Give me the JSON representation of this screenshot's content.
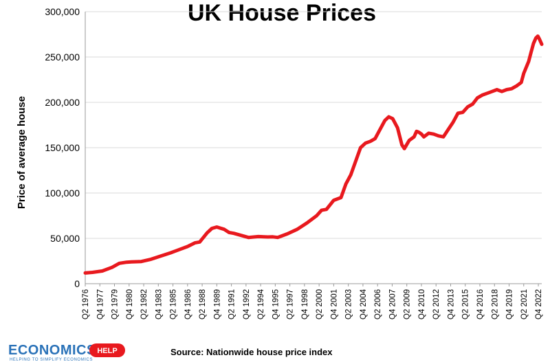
{
  "chart_data": {
    "type": "line",
    "title": "UK House Prices",
    "ylabel": "Price of average house",
    "xlabel": "",
    "source": "Source: Nationwide house price index",
    "ylim": [
      0,
      300000
    ],
    "yticks": [
      "0",
      "50,000",
      "100,000",
      "150,000",
      "200,000",
      "250,000",
      "300,000"
    ],
    "ytick_values": [
      0,
      50000,
      100000,
      150000,
      200000,
      250000,
      300000
    ],
    "xlim_years": [
      1976.25,
      2023.1
    ],
    "xticks": [
      "Q2 1976",
      "Q4 1977",
      "Q2 1979",
      "Q4 1980",
      "Q2 1982",
      "Q4 1983",
      "Q2 1985",
      "Q4 1986",
      "Q2 1988",
      "Q4 1989",
      "Q2 1991",
      "Q4 1992",
      "Q2 1994",
      "Q4 1995",
      "Q2 1997",
      "Q4 1998",
      "Q2 2000",
      "Q4 2001",
      "Q2 2003",
      "Q4 2004",
      "Q2 2006",
      "Q4 2007",
      "Q2 2009",
      "Q4 2010",
      "Q2 2012",
      "Q4 2013",
      "Q2 2015",
      "Q4 2016",
      "Q2 2018",
      "Q4 2019",
      "Q2 2021",
      "Q4 2022"
    ],
    "line_color": "#e8191e",
    "grid": "horizontal",
    "series": [
      {
        "x": [
          1976.25,
          1977,
          1978,
          1979,
          1979.75,
          1980.5,
          1981,
          1982,
          1983,
          1984,
          1985,
          1986,
          1986.75,
          1987.5,
          1988,
          1988.75,
          1989.25,
          1989.75,
          1990.5,
          1991,
          1991.5,
          1992,
          1992.5,
          1993,
          1994,
          1995,
          1995.5,
          1996,
          1997,
          1998,
          1999,
          2000,
          2000.5,
          2001,
          2001.75,
          2002.5,
          2003,
          2003.5,
          2004,
          2004.5,
          2005,
          2005.5,
          2006,
          2006.5,
          2007,
          2007.4,
          2007.8,
          2008.3,
          2008.75,
          2009,
          2009.5,
          2010,
          2010.25,
          2010.5,
          2010.75,
          2011,
          2011.5,
          2012,
          2012.5,
          2013,
          2013.5,
          2014,
          2014.5,
          2015,
          2015.5,
          2016,
          2016.5,
          2017,
          2017.5,
          2018,
          2018.5,
          2019,
          2019.5,
          2020,
          2020.5,
          2021,
          2021.25,
          2021.75,
          2022,
          2022.25,
          2022.5,
          2022.7,
          2022.85,
          2023.1
        ],
        "y": [
          11800,
          12500,
          14000,
          18000,
          22500,
          23700,
          24000,
          24500,
          27000,
          30500,
          34000,
          38000,
          41000,
          45000,
          46000,
          56000,
          61000,
          62500,
          60000,
          56500,
          55500,
          54000,
          52500,
          51000,
          52000,
          51500,
          51700,
          51000,
          55000,
          60000,
          67000,
          75000,
          81000,
          82000,
          92000,
          95000,
          110000,
          120000,
          135000,
          150000,
          155000,
          157000,
          160000,
          170000,
          180000,
          184000,
          182000,
          172000,
          153000,
          149000,
          158000,
          162000,
          168000,
          167000,
          165000,
          162000,
          166000,
          165000,
          163000,
          162000,
          170000,
          178000,
          188000,
          189000,
          195000,
          198000,
          205000,
          208000,
          210000,
          212000,
          214000,
          212000,
          214000,
          215000,
          218000,
          222000,
          232000,
          245000,
          255000,
          265000,
          271000,
          273000,
          270000,
          264000
        ]
      }
    ]
  },
  "footer": {
    "logo_word": "ECONOMICS",
    "logo_badge": "HELP",
    "logo_tagline": "HELPING TO SIMPLIFY ECONOMICS"
  }
}
